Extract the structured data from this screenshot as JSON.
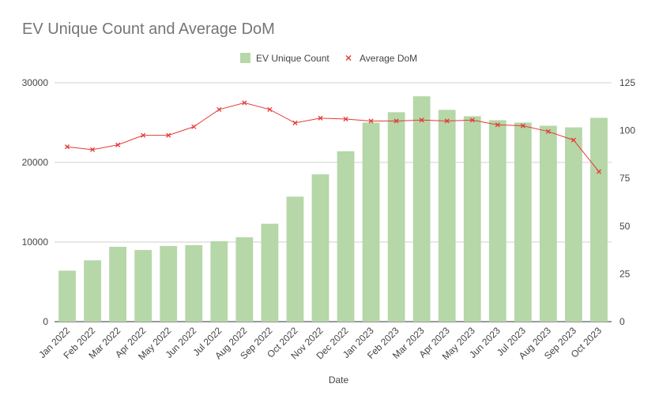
{
  "chart_data": {
    "type": "bar",
    "title": "EV Unique Count and Average DoM",
    "xlabel": "Date",
    "ylabel": "",
    "y2label": "",
    "categories": [
      "Jan 2022",
      "Feb 2022",
      "Mar 2022",
      "Apr 2022",
      "May 2022",
      "Jun 2022",
      "Jul 2022",
      "Aug 2022",
      "Sep 2022",
      "Oct 2022",
      "Nov 2022",
      "Dec 2022",
      "Jan 2023",
      "Feb 2023",
      "Mar 2023",
      "Apr 2023",
      "May 2023",
      "Jun 2023",
      "Jul 2023",
      "Aug 2023",
      "Sep 2023",
      "Oct 2023"
    ],
    "series": [
      {
        "name": "EV Unique Count",
        "type": "bar",
        "axis": "left",
        "color": "#b6d7a8",
        "values": [
          6400,
          7700,
          9400,
          9000,
          9500,
          9600,
          10100,
          10600,
          12300,
          15700,
          18500,
          21400,
          25000,
          26300,
          28300,
          26600,
          25800,
          25300,
          25000,
          24600,
          24400,
          25600
        ]
      },
      {
        "name": "Average DoM",
        "type": "line",
        "axis": "right",
        "color": "#e53935",
        "marker": "x",
        "values": [
          91.5,
          90,
          92.5,
          97.5,
          97.5,
          102,
          111,
          114.5,
          111,
          104,
          106.5,
          106,
          105,
          105,
          105.5,
          105,
          105.5,
          103,
          102.5,
          99.5,
          95,
          78.5
        ]
      }
    ],
    "ylim": [
      0,
      30000
    ],
    "y2lim": [
      0,
      125
    ],
    "yticks": [
      "0",
      "10000",
      "20000",
      "30000"
    ],
    "y2ticks": [
      "0",
      "25",
      "50",
      "75",
      "100",
      "125"
    ],
    "grid": true,
    "legend": "top-center"
  }
}
